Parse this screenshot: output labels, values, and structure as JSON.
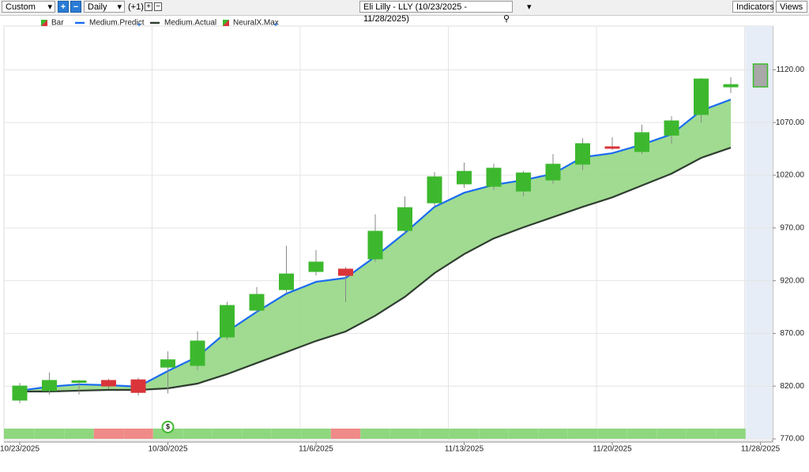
{
  "toolbar": {
    "period": "Custom",
    "interval": "Daily",
    "offset": "(+1)",
    "symbol": "Eli Lilly - LLY (10/23/2025 - 11/28/2025)",
    "indicators": "Indicators",
    "views": "Views"
  },
  "chart_data": {
    "type": "candlestick",
    "categories": [
      "10/23/2025",
      null,
      null,
      null,
      null,
      "10/30/2025",
      null,
      null,
      null,
      null,
      "11/6/2025",
      null,
      null,
      null,
      null,
      "11/13/2025",
      null,
      null,
      null,
      null,
      "11/20/2025",
      null,
      null,
      null,
      null,
      "11/28/2025"
    ],
    "series": [
      {
        "name": "Bar",
        "up_color": "#3db82e",
        "down_color": "#d9343a",
        "open": [
          806.7,
          815.7,
          824,
          825.4,
          826,
          838,
          839.6,
          866.6,
          892,
          911.5,
          928.7,
          931,
          940.7,
          967.6,
          993.8,
          1011.8,
          1009.5,
          1005,
          1015.5,
          1030.5,
          1047,
          1042.5,
          1058,
          1077.6,
          1103.8,
          null
        ],
        "high": [
          823,
          833,
          826,
          827,
          828,
          853,
          872,
          900,
          914,
          953,
          949,
          933,
          983,
          1000,
          1023,
          1032,
          1031,
          1024,
          1040,
          1055,
          1056,
          1068,
          1076,
          1112,
          1113,
          null
        ],
        "low": [
          804,
          812,
          812,
          817,
          811,
          813,
          835,
          864,
          890,
          908,
          925,
          900,
          938,
          964,
          990,
          1008,
          1006,
          1000,
          1012,
          1025,
          1044,
          1040,
          1050,
          1070,
          1098,
          null
        ],
        "close": [
          820.1,
          825.4,
          825,
          820.1,
          814,
          845,
          862.8,
          896.5,
          907,
          926.4,
          937.7,
          925,
          966.9,
          989.3,
          1018.5,
          1023.7,
          1026.7,
          1022.2,
          1030.5,
          1050,
          1045.5,
          1060.4,
          1071.6,
          1111.3,
          1106,
          null
        ]
      },
      {
        "name": "Medium.Predict",
        "color": "#1a6cf0",
        "values": [
          815.7,
          819.5,
          821.7,
          820.9,
          819.5,
          834.4,
          847.9,
          871.8,
          890.5,
          907.7,
          918.9,
          922.6,
          942.8,
          965.3,
          990,
          1003.4,
          1010.9,
          1015.4,
          1021.4,
          1037.1,
          1040.9,
          1049.1,
          1058.8,
          1081.3,
          1091.8,
          null
        ]
      },
      {
        "name": "Medium.Actual",
        "color": "#2f3d2f",
        "values": [
          814.9,
          814.9,
          815.7,
          816.4,
          816.4,
          817.9,
          822.4,
          831.4,
          841.9,
          852.3,
          862.8,
          871.8,
          886.8,
          904.7,
          927.2,
          945.2,
          960.1,
          970.6,
          980.3,
          990,
          999,
          1010.3,
          1021.5,
          1036.5,
          1046.2,
          null
        ]
      },
      {
        "name": "NeuralX.Max",
        "color": "#a8a8a8",
        "border": "#3db82e",
        "low": [
          null,
          null,
          null,
          null,
          null,
          null,
          null,
          null,
          null,
          null,
          null,
          null,
          null,
          null,
          null,
          null,
          null,
          null,
          null,
          null,
          null,
          null,
          null,
          null,
          null,
          1103.8
        ],
        "high": [
          null,
          null,
          null,
          null,
          null,
          null,
          null,
          null,
          null,
          null,
          null,
          null,
          null,
          null,
          null,
          null,
          null,
          null,
          null,
          null,
          null,
          null,
          null,
          null,
          null,
          1125.5
        ]
      }
    ],
    "fill_color": "#9bd98b",
    "signals": [
      1,
      1,
      1,
      -1,
      -1,
      1,
      1,
      1,
      1,
      1,
      1,
      -1,
      1,
      1,
      1,
      1,
      1,
      1,
      1,
      1,
      1,
      1,
      1,
      1,
      1
    ],
    "signal_up_color": "#8fd77f",
    "signal_down_color": "#ef8a88",
    "ylim": [
      770,
      1161.5
    ],
    "yticks": [
      {
        "value": 770,
        "label": "770.00"
      },
      {
        "value": 820,
        "label": "820.00"
      },
      {
        "value": 870,
        "label": "870.00"
      },
      {
        "value": 920,
        "label": "920.00"
      },
      {
        "value": 970,
        "label": "970.00"
      },
      {
        "value": 1020,
        "label": "1020.00"
      },
      {
        "value": 1070,
        "label": "1070.00"
      },
      {
        "value": 1120,
        "label": "1120.00"
      }
    ],
    "grid": true
  }
}
